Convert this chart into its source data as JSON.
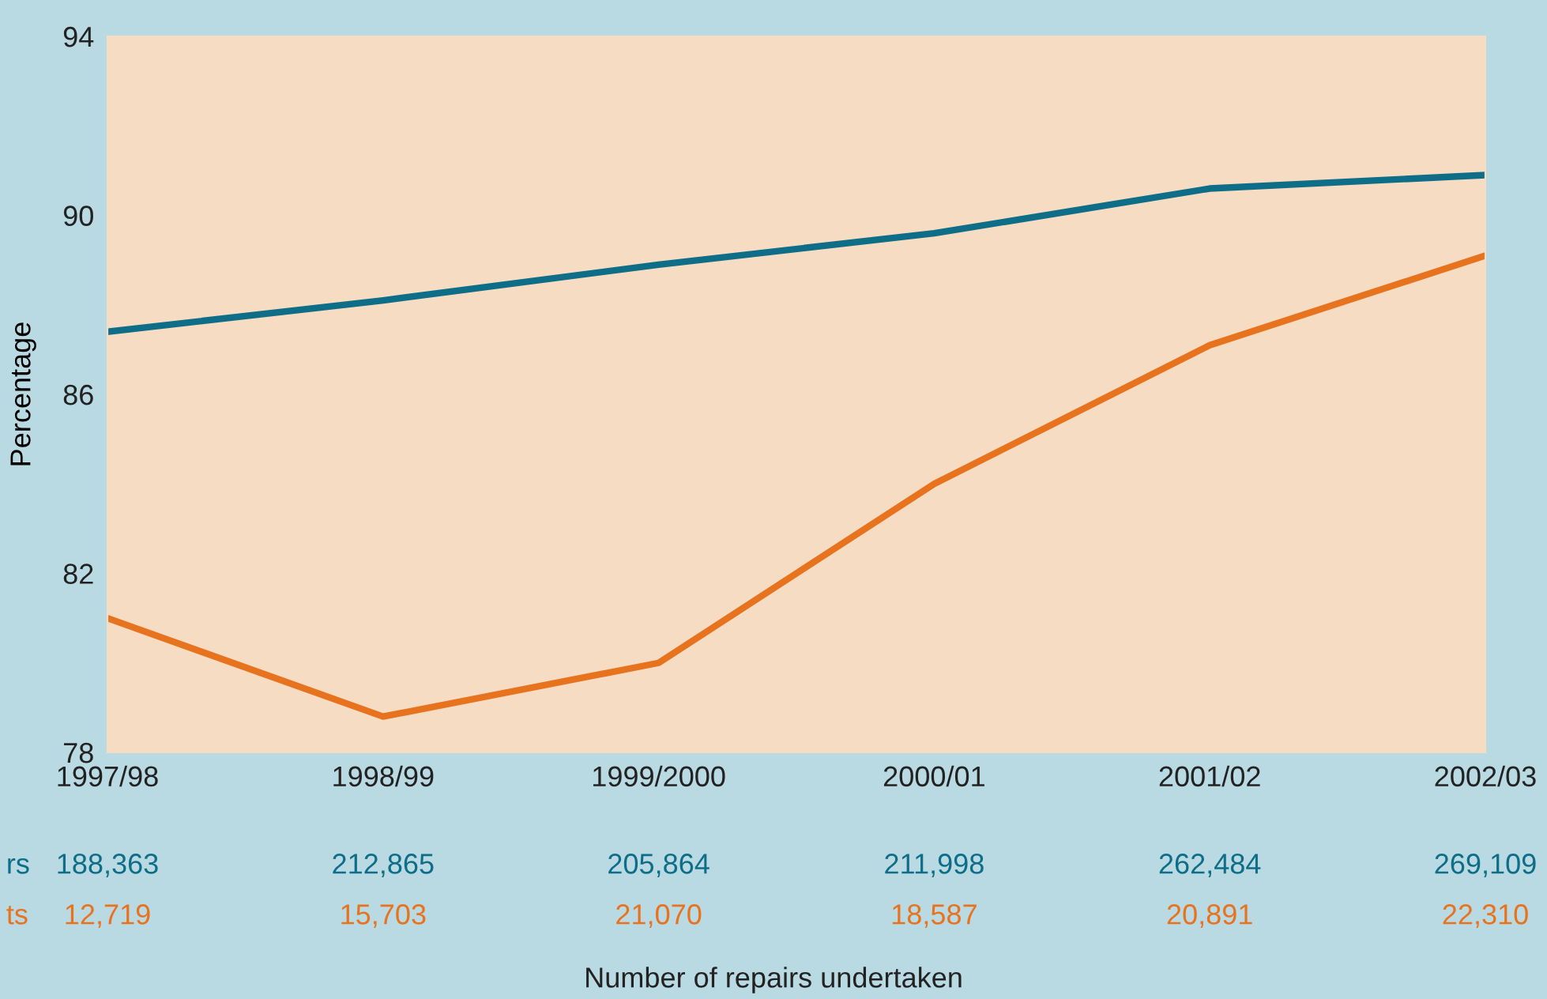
{
  "chart_data": {
    "type": "line",
    "ylabel": "Percentage",
    "categories": [
      "1997/98",
      "1998/99",
      "1999/2000",
      "2000/01",
      "2001/02",
      "2002/03"
    ],
    "series": [
      {
        "name": "rs",
        "color": "#0e6e87",
        "values": [
          87.4,
          88.1,
          88.9,
          89.6,
          90.6,
          90.9
        ]
      },
      {
        "name": "ts",
        "color": "#e8731e",
        "values": [
          81.0,
          78.8,
          80.0,
          84.0,
          87.1,
          89.1
        ]
      }
    ],
    "ylim": [
      78,
      94
    ],
    "yticks": [
      78,
      82,
      86,
      90,
      94
    ],
    "grid": false,
    "legend": false,
    "marker": "none",
    "line_style": "solid",
    "annotations": [
      "188,363",
      "212,865",
      "205,864",
      "211,998",
      "262,484",
      "269,109",
      "12,719",
      "15,703",
      "21,070",
      "18,587",
      "20,891",
      "22,310",
      "Number of repairs undertaken"
    ]
  }
}
